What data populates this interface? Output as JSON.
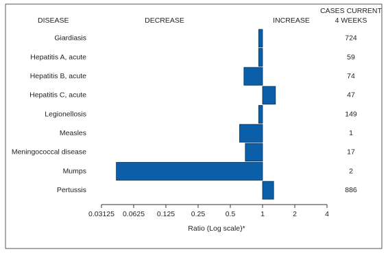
{
  "chart_data": {
    "type": "bar",
    "orientation": "horizontal",
    "headers": {
      "category": "DISEASE",
      "decrease": "DECREASE",
      "increase": "INCREASE",
      "cases": [
        "CASES CURRENT",
        "4 WEEKS"
      ]
    },
    "categories": [
      "Giardiasis",
      "Hepatitis A, acute",
      "Hepatitis B, acute",
      "Hepatitis C, acute",
      "Legionellosis",
      "Measles",
      "Meningococcal disease",
      "Mumps",
      "Pertussis"
    ],
    "values": [
      0.92,
      0.92,
      0.67,
      1.32,
      0.92,
      0.61,
      0.69,
      0.043,
      1.27
    ],
    "cases": [
      724,
      59,
      74,
      47,
      149,
      1,
      17,
      2,
      886
    ],
    "color": "#0b5ea8",
    "xlabel": "Ratio (Log scale)*",
    "log_scale": true,
    "baseline": 1,
    "xlim": [
      0.03125,
      4
    ],
    "xticks": [
      0.03125,
      0.0625,
      0.125,
      0.25,
      0.5,
      1,
      2,
      4
    ]
  }
}
